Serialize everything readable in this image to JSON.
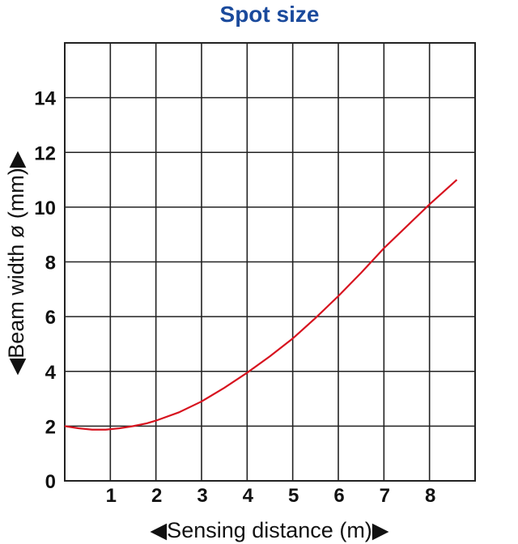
{
  "chart_data": {
    "type": "line",
    "title": "Spot size",
    "xlabel": "◀Sensing distance (m)▶",
    "ylabel": "◀Beam width ø (mm)▶",
    "xlim": [
      0,
      9
    ],
    "ylim": [
      0,
      16
    ],
    "x_ticks": [
      1,
      2,
      3,
      4,
      5,
      6,
      7,
      8
    ],
    "y_ticks": [
      0,
      2,
      4,
      6,
      8,
      10,
      12,
      14
    ],
    "grid": true,
    "colors": {
      "title": "#1a4a9c",
      "series": "#d7131f",
      "grid": "#222222"
    },
    "series": [
      {
        "x": [
          0,
          0.3,
          0.6,
          0.9,
          1.2,
          1.5,
          1.8,
          2.0,
          2.5,
          3.0,
          3.5,
          4.0,
          4.5,
          5.0,
          5.5,
          6.0,
          6.5,
          7.0,
          7.5,
          8.0,
          8.6
        ],
        "y": [
          2.0,
          1.92,
          1.87,
          1.87,
          1.92,
          2.0,
          2.1,
          2.2,
          2.5,
          2.9,
          3.4,
          3.95,
          4.55,
          5.2,
          5.95,
          6.75,
          7.6,
          8.5,
          9.3,
          10.1,
          11.0
        ]
      }
    ]
  }
}
